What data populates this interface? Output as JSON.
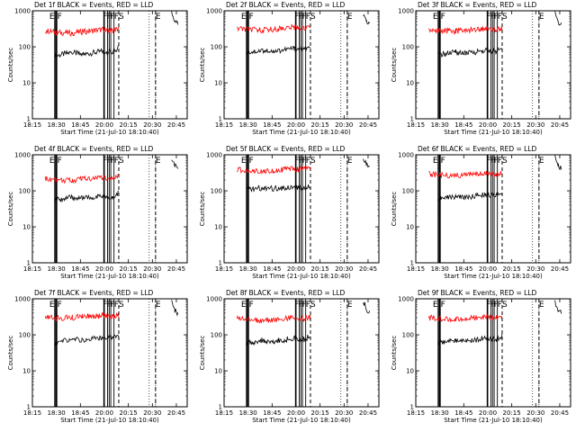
{
  "figure": {
    "start_time_label": "Start Time (21-Jul-10 18:10:40)",
    "y_axis_label": "Counts/sec",
    "x_tick_labels": [
      "18:15",
      "18:30",
      "18:45",
      "20:00",
      "20:15",
      "20:30",
      "20:45"
    ],
    "y_tick_labels": [
      "1",
      "10",
      "100",
      "1000"
    ],
    "colors": {
      "events": "#000000",
      "lld": "#ff0000",
      "axes": "#000000"
    }
  },
  "chart_data": [
    {
      "type": "line",
      "title": "Det 1f BLACK = Events, RED = LLD",
      "ylabel": "Counts/sec",
      "xlabel": "Start Time (21-Jul-10 18:10:40)",
      "x_ticks": [
        "18:15",
        "18:30",
        "18:45",
        "20:00",
        "20:15",
        "20:30",
        "20:45"
      ],
      "y_scale": "log",
      "ylim": [
        1,
        1000
      ],
      "markers": [
        {
          "x": "18:29",
          "label": "E"
        },
        {
          "x": "18:30",
          "label": "F"
        },
        {
          "x": "20:09",
          "label": "S"
        },
        {
          "x": "20:32",
          "label": "E"
        }
      ],
      "series": [
        {
          "name": "Events",
          "color": "#000000",
          "segments": [
            {
              "x": [
                "18:29",
                "18:40",
                "18:50",
                "19:55",
                "20:05",
                "20:09"
              ],
              "y": [
                55,
                70,
                60,
                75,
                70,
                90
              ]
            },
            {
              "x": [
                "20:42",
                "20:44",
                "20:46"
              ],
              "y": [
                900,
                500,
                420
              ]
            }
          ]
        },
        {
          "name": "LLD",
          "color": "#ff0000",
          "segments": [
            {
              "x": [
                "18:23",
                "18:30",
                "18:40",
                "18:50",
                "19:55",
                "20:05",
                "20:09"
              ],
              "y": [
                280,
                250,
                240,
                260,
                300,
                280,
                320
              ]
            }
          ]
        }
      ]
    },
    {
      "type": "line",
      "title": "Det 2f BLACK = Events, RED = LLD",
      "ylabel": "Counts/sec",
      "xlabel": "Start Time (21-Jul-10 18:10:40)",
      "x_ticks": [
        "18:15",
        "18:30",
        "18:45",
        "20:00",
        "20:15",
        "20:30",
        "20:45"
      ],
      "y_scale": "log",
      "ylim": [
        1,
        1000
      ],
      "markers": [
        {
          "x": "18:29",
          "label": "E"
        },
        {
          "x": "18:30",
          "label": "F"
        },
        {
          "x": "20:09",
          "label": "S"
        },
        {
          "x": "20:32",
          "label": "E"
        }
      ],
      "series": [
        {
          "name": "Events",
          "color": "#000000",
          "segments": [
            {
              "x": [
                "18:29",
                "18:40",
                "18:50",
                "19:55",
                "20:05",
                "20:09"
              ],
              "y": [
                70,
                80,
                75,
                90,
                85,
                95
              ]
            },
            {
              "x": [
                "20:42",
                "20:44",
                "20:46"
              ],
              "y": [
                800,
                480,
                400
              ]
            }
          ]
        },
        {
          "name": "LLD",
          "color": "#ff0000",
          "segments": [
            {
              "x": [
                "18:23",
                "18:30",
                "18:40",
                "18:50",
                "19:55",
                "20:05",
                "20:09"
              ],
              "y": [
                320,
                300,
                290,
                310,
                350,
                330,
                360
              ]
            }
          ]
        }
      ]
    },
    {
      "type": "line",
      "title": "Det 3f BLACK = Events, RED = LLD",
      "ylabel": "Counts/sec",
      "xlabel": "Start Time (21-Jul-10 18:10:40)",
      "x_ticks": [
        "18:15",
        "18:30",
        "18:45",
        "20:00",
        "20:15",
        "20:30",
        "20:45"
      ],
      "y_scale": "log",
      "ylim": [
        1,
        1000
      ],
      "markers": [
        {
          "x": "18:29",
          "label": "E"
        },
        {
          "x": "18:30",
          "label": "F"
        },
        {
          "x": "20:09",
          "label": "S"
        },
        {
          "x": "20:32",
          "label": "E"
        }
      ],
      "series": [
        {
          "name": "Events",
          "color": "#000000",
          "segments": [
            {
              "x": [
                "18:29",
                "18:40",
                "18:50",
                "19:55",
                "20:05",
                "20:09"
              ],
              "y": [
                60,
                70,
                65,
                80,
                75,
                90
              ]
            },
            {
              "x": [
                "20:42",
                "20:44",
                "20:46"
              ],
              "y": [
                850,
                480,
                420
              ]
            }
          ]
        },
        {
          "name": "LLD",
          "color": "#ff0000",
          "segments": [
            {
              "x": [
                "18:23",
                "18:30",
                "18:40",
                "18:50",
                "19:55",
                "20:05",
                "20:09"
              ],
              "y": [
                300,
                280,
                270,
                290,
                320,
                300,
                330
              ]
            }
          ]
        }
      ]
    },
    {
      "type": "line",
      "title": "Det 4f BLACK = Events, RED = LLD",
      "ylabel": "Counts/sec",
      "xlabel": "Start Time (21-Jul-10 18:10:40)",
      "x_ticks": [
        "18:15",
        "18:30",
        "18:45",
        "20:00",
        "20:15",
        "20:30",
        "20:45"
      ],
      "y_scale": "log",
      "ylim": [
        1,
        1000
      ],
      "markers": [
        {
          "x": "18:29",
          "label": "E"
        },
        {
          "x": "18:30",
          "label": "F"
        },
        {
          "x": "20:09",
          "label": "S"
        },
        {
          "x": "20:32",
          "label": "E"
        }
      ],
      "series": [
        {
          "name": "Events",
          "color": "#000000",
          "segments": [
            {
              "x": [
                "18:29",
                "18:40",
                "18:50",
                "19:55",
                "20:05",
                "20:09"
              ],
              "y": [
                55,
                65,
                60,
                70,
                65,
                85
              ]
            },
            {
              "x": [
                "20:42",
                "20:44",
                "20:46"
              ],
              "y": [
                800,
                500,
                450
              ]
            }
          ]
        },
        {
          "name": "LLD",
          "color": "#ff0000",
          "segments": [
            {
              "x": [
                "18:23",
                "18:30",
                "18:40",
                "18:50",
                "19:55",
                "20:05",
                "20:09"
              ],
              "y": [
                220,
                200,
                190,
                210,
                240,
                220,
                260
              ]
            }
          ]
        }
      ]
    },
    {
      "type": "line",
      "title": "Det 5f BLACK = Events, RED = LLD",
      "ylabel": "Counts/sec",
      "xlabel": "Start Time (21-Jul-10 18:10:40)",
      "x_ticks": [
        "18:15",
        "18:30",
        "18:45",
        "20:00",
        "20:15",
        "20:30",
        "20:45"
      ],
      "y_scale": "log",
      "ylim": [
        1,
        1000
      ],
      "markers": [
        {
          "x": "18:29",
          "label": "E"
        },
        {
          "x": "18:30",
          "label": "F"
        },
        {
          "x": "20:09",
          "label": "S"
        },
        {
          "x": "20:32",
          "label": "E"
        }
      ],
      "series": [
        {
          "name": "Events",
          "color": "#000000",
          "segments": [
            {
              "x": [
                "18:29",
                "18:40",
                "18:50",
                "19:55",
                "20:05",
                "20:09"
              ],
              "y": [
                110,
                120,
                115,
                130,
                120,
                140
              ]
            },
            {
              "x": [
                "20:42",
                "20:44",
                "20:46"
              ],
              "y": [
                800,
                550,
                480
              ]
            }
          ]
        },
        {
          "name": "LLD",
          "color": "#ff0000",
          "segments": [
            {
              "x": [
                "18:23",
                "18:30",
                "18:40",
                "18:50",
                "19:55",
                "20:05",
                "20:09"
              ],
              "y": [
                380,
                370,
                360,
                380,
                400,
                380,
                420
              ]
            }
          ]
        }
      ]
    },
    {
      "type": "line",
      "title": "Det 6f BLACK = Events, RED = LLD",
      "ylabel": "Counts/sec",
      "xlabel": "Start Time (21-Jul-10 18:10:40)",
      "x_ticks": [
        "18:15",
        "18:30",
        "18:45",
        "20:00",
        "20:15",
        "20:30",
        "20:45"
      ],
      "y_scale": "log",
      "ylim": [
        1,
        1000
      ],
      "markers": [
        {
          "x": "18:29",
          "label": "E"
        },
        {
          "x": "18:30",
          "label": "F"
        },
        {
          "x": "20:09",
          "label": "S"
        },
        {
          "x": "20:32",
          "label": "E"
        }
      ],
      "series": [
        {
          "name": "Events",
          "color": "#000000",
          "segments": [
            {
              "x": [
                "18:29",
                "18:40",
                "18:50",
                "19:55",
                "20:05",
                "20:09"
              ],
              "y": [
                60,
                70,
                65,
                80,
                70,
                90
              ]
            },
            {
              "x": [
                "20:42",
                "20:44",
                "20:46"
              ],
              "y": [
                850,
                500,
                420
              ]
            }
          ]
        },
        {
          "name": "LLD",
          "color": "#ff0000",
          "segments": [
            {
              "x": [
                "18:23",
                "18:30",
                "18:40",
                "18:50",
                "19:55",
                "20:05",
                "20:09"
              ],
              "y": [
                290,
                270,
                260,
                280,
                300,
                280,
                310
              ]
            }
          ]
        }
      ]
    },
    {
      "type": "line",
      "title": "Det 7f BLACK = Events, RED = LLD",
      "ylabel": "Counts/sec",
      "xlabel": "Start Time (21-Jul-10 18:10:40)",
      "x_ticks": [
        "18:15",
        "18:30",
        "18:45",
        "20:00",
        "20:15",
        "20:30",
        "20:45"
      ],
      "y_scale": "log",
      "ylim": [
        1,
        1000
      ],
      "markers": [
        {
          "x": "18:29",
          "label": "E"
        },
        {
          "x": "18:30",
          "label": "F"
        },
        {
          "x": "20:09",
          "label": "S"
        },
        {
          "x": "20:32",
          "label": "E"
        }
      ],
      "series": [
        {
          "name": "Events",
          "color": "#000000",
          "segments": [
            {
              "x": [
                "18:29",
                "18:40",
                "18:50",
                "19:55",
                "20:05",
                "20:09"
              ],
              "y": [
                60,
                75,
                70,
                85,
                80,
                95
              ]
            },
            {
              "x": [
                "20:42",
                "20:44",
                "20:46"
              ],
              "y": [
                800,
                480,
                400
              ]
            }
          ]
        },
        {
          "name": "LLD",
          "color": "#ff0000",
          "segments": [
            {
              "x": [
                "18:23",
                "18:30",
                "18:40",
                "18:50",
                "19:55",
                "20:05",
                "20:09"
              ],
              "y": [
                300,
                290,
                300,
                320,
                340,
                320,
                360
              ]
            }
          ]
        }
      ]
    },
    {
      "type": "line",
      "title": "Det 8f BLACK = Events, RED = LLD",
      "ylabel": "Counts/sec",
      "xlabel": "Start Time (21-Jul-10 18:10:40)",
      "x_ticks": [
        "18:15",
        "18:30",
        "18:45",
        "20:00",
        "20:15",
        "20:30",
        "20:45"
      ],
      "y_scale": "log",
      "ylim": [
        1,
        1000
      ],
      "markers": [
        {
          "x": "18:29",
          "label": "E"
        },
        {
          "x": "18:30",
          "label": "F"
        },
        {
          "x": "20:09",
          "label": "S"
        },
        {
          "x": "20:32",
          "label": "E"
        }
      ],
      "series": [
        {
          "name": "Events",
          "color": "#000000",
          "segments": [
            {
              "x": [
                "18:29",
                "18:40",
                "18:50",
                "19:55",
                "20:05",
                "20:09"
              ],
              "y": [
                60,
                70,
                65,
                80,
                75,
                90
              ]
            },
            {
              "x": [
                "20:42",
                "20:44",
                "20:46"
              ],
              "y": [
                850,
                500,
                430
              ]
            }
          ]
        },
        {
          "name": "LLD",
          "color": "#ff0000",
          "segments": [
            {
              "x": [
                "18:23",
                "18:30",
                "18:40",
                "18:50",
                "19:55",
                "20:05",
                "20:09"
              ],
              "y": [
                280,
                260,
                250,
                270,
                300,
                280,
                320
              ]
            }
          ]
        }
      ]
    },
    {
      "type": "line",
      "title": "Det 9f BLACK = Events, RED = LLD",
      "ylabel": "Counts/sec",
      "xlabel": "Start Time (21-Jul-10 18:10:40)",
      "x_ticks": [
        "18:15",
        "18:30",
        "18:45",
        "20:00",
        "20:15",
        "20:30",
        "20:45"
      ],
      "y_scale": "log",
      "ylim": [
        1,
        1000
      ],
      "markers": [
        {
          "x": "18:29",
          "label": "E"
        },
        {
          "x": "18:30",
          "label": "F"
        },
        {
          "x": "20:09",
          "label": "S"
        },
        {
          "x": "20:32",
          "label": "E"
        }
      ],
      "series": [
        {
          "name": "Events",
          "color": "#000000",
          "segments": [
            {
              "x": [
                "18:29",
                "18:40",
                "18:50",
                "19:55",
                "20:05",
                "20:09"
              ],
              "y": [
                60,
                70,
                65,
                80,
                75,
                90
              ]
            },
            {
              "x": [
                "20:42",
                "20:44",
                "20:46"
              ],
              "y": [
                800,
                480,
                400
              ]
            }
          ]
        },
        {
          "name": "LLD",
          "color": "#ff0000",
          "segments": [
            {
              "x": [
                "18:23",
                "18:30",
                "18:40",
                "18:50",
                "19:55",
                "20:05",
                "20:09"
              ],
              "y": [
                300,
                280,
                270,
                290,
                320,
                300,
                340
              ]
            }
          ]
        }
      ]
    }
  ]
}
